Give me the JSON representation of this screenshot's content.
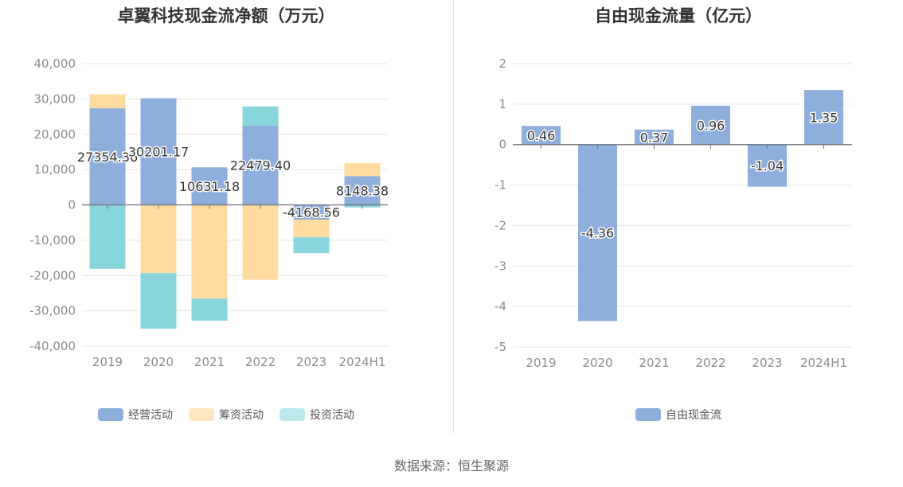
{
  "source_text": "数据来源：恒生聚源",
  "colors": {
    "operating": "#8eaedc",
    "financing": "#ffdba0",
    "investing": "#88d5db",
    "fcf": "#8eaedc",
    "grid": "#e4e4e4",
    "axis_text": "#8c8c8c"
  },
  "chart_data": [
    {
      "type": "bar",
      "stacked": true,
      "title": "卓翼科技现金流净额（万元）",
      "categories": [
        "2019",
        "2020",
        "2021",
        "2022",
        "2023",
        "2024H1"
      ],
      "ylim": [
        -40000,
        40000
      ],
      "yticks": [
        40000,
        30000,
        20000,
        10000,
        0,
        -10000,
        -20000,
        -30000,
        -40000
      ],
      "ytick_labels": [
        "40,000",
        "30,000",
        "20,000",
        "10,000",
        "0",
        "-10,000",
        "-20,000",
        "-30,000",
        "-40,000"
      ],
      "grid": true,
      "legend_position": "bottom",
      "series": [
        {
          "name": "经营活动",
          "key": "operating",
          "values": [
            27354.36,
            30201.17,
            10631.18,
            22479.4,
            -4168.56,
            8148.38
          ]
        },
        {
          "name": "筹资活动",
          "key": "financing",
          "values": [
            4000,
            -19300,
            -26500,
            -21200,
            -5000,
            3700
          ]
        },
        {
          "name": "投资活动",
          "key": "investing",
          "values": [
            -18100,
            -15800,
            -6300,
            5400,
            -4500,
            -700
          ]
        }
      ],
      "data_labels": [
        "27354.36",
        "30201.17",
        "10631.18",
        "22479.40",
        "-4168.56",
        "8148.38"
      ]
    },
    {
      "type": "bar",
      "title": "自由现金流量（亿元）",
      "categories": [
        "2019",
        "2020",
        "2021",
        "2022",
        "2023",
        "2024H1"
      ],
      "ylim": [
        -5,
        2
      ],
      "yticks": [
        2,
        1,
        0,
        -1,
        -2,
        -3,
        -4,
        -5
      ],
      "ytick_labels": [
        "2",
        "1",
        "0",
        "-1",
        "-2",
        "-3",
        "-4",
        "-5"
      ],
      "grid": true,
      "legend_position": "bottom",
      "series": [
        {
          "name": "自由现金流",
          "key": "fcf",
          "values": [
            0.46,
            -4.36,
            0.37,
            0.96,
            -1.04,
            1.35
          ]
        }
      ],
      "data_labels": [
        "0.46",
        "-4.36",
        "0.37",
        "0.96",
        "-1.04",
        "1.35"
      ]
    }
  ]
}
